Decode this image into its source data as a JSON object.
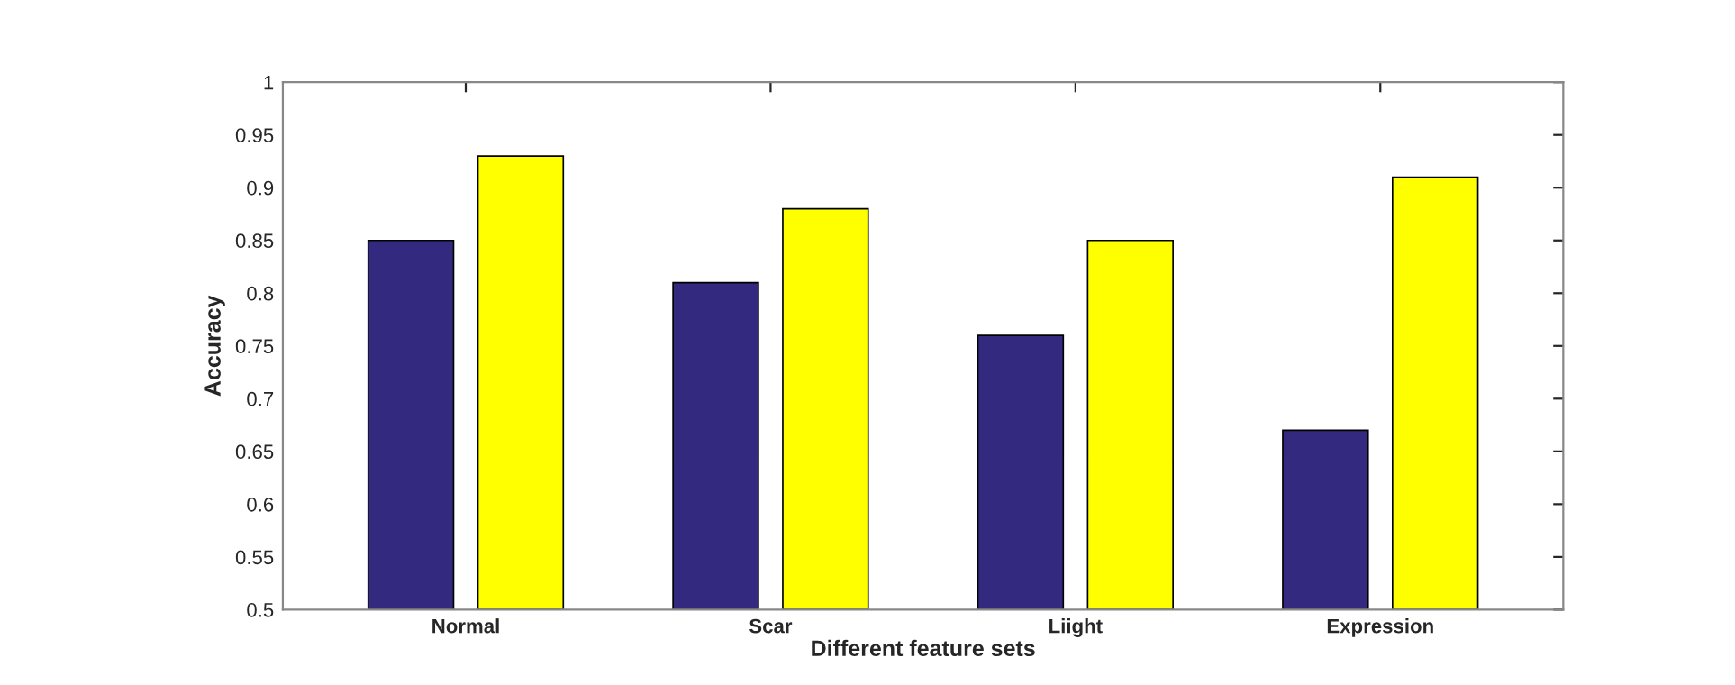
{
  "chart_data": {
    "type": "bar",
    "xlabel": "Different feature sets",
    "ylabel": "Accuracy",
    "categories": [
      "Normal",
      "Scar",
      "Liight",
      "Expression"
    ],
    "series": [
      {
        "color": "#332a80",
        "values": [
          0.85,
          0.81,
          0.76,
          0.67
        ]
      },
      {
        "color": "#ffff00",
        "values": [
          0.93,
          0.88,
          0.85,
          0.91
        ]
      }
    ],
    "ylim": [
      0.5,
      1
    ],
    "yticks": [
      0.5,
      0.55,
      0.6,
      0.65,
      0.7,
      0.75,
      0.8,
      0.85,
      0.9,
      0.95,
      1
    ],
    "grid": false,
    "legend": false
  }
}
